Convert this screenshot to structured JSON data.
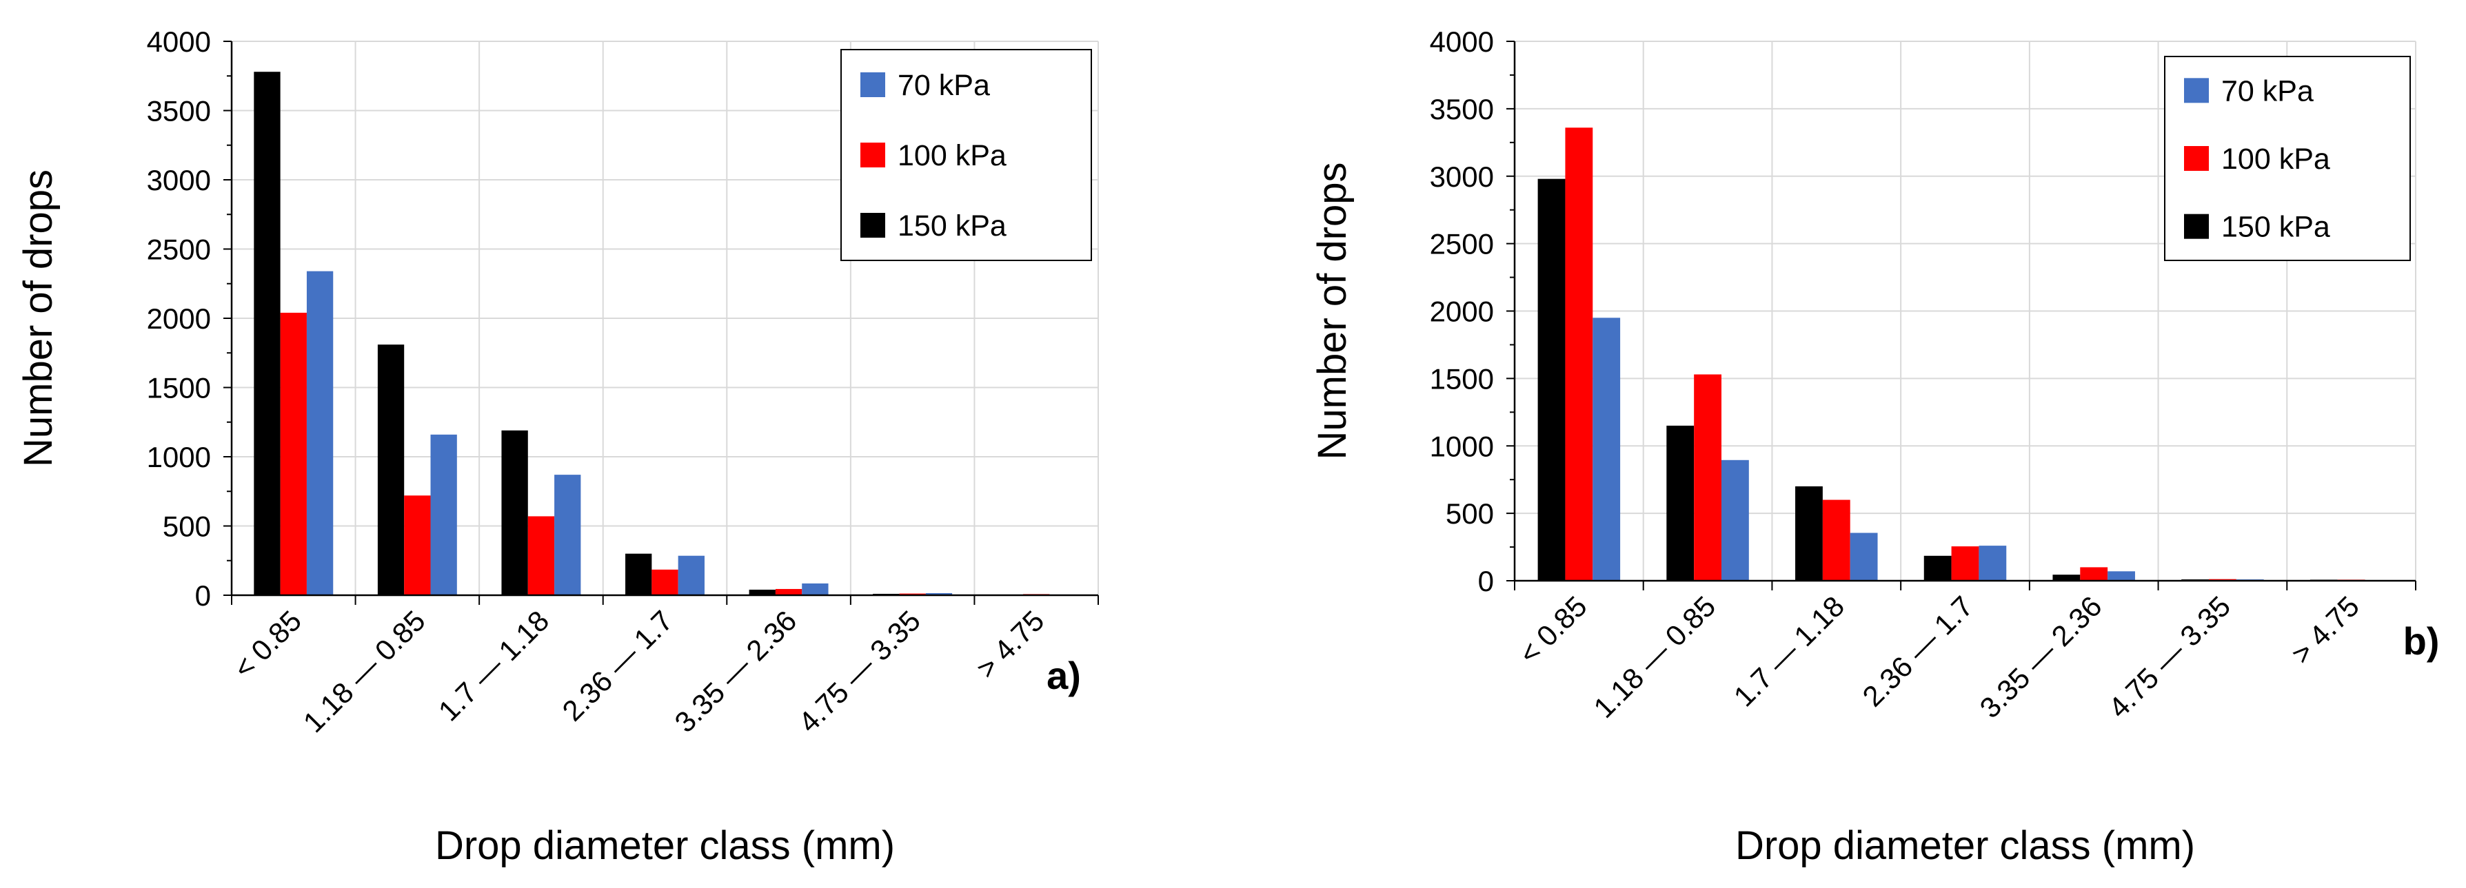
{
  "chart_data": [
    {
      "type": "bar",
      "panel_label": "a)",
      "categories": [
        "< 0.85",
        "1.18 — 0.85",
        "1.7 — 1.18",
        "2.36 — 1.7",
        "3.35 — 2.36",
        "4.75 — 3.35",
        "> 4.75"
      ],
      "series": [
        {
          "name": "150 kPa",
          "color": "#000000",
          "values": [
            3780,
            1810,
            1190,
            300,
            40,
            10,
            5
          ]
        },
        {
          "name": "100 kPa",
          "color": "#ff0000",
          "values": [
            2040,
            720,
            570,
            185,
            45,
            12,
            8
          ]
        },
        {
          "name": "70 kPa",
          "color": "#4472c4",
          "values": [
            2340,
            1160,
            870,
            285,
            85,
            15,
            5
          ]
        }
      ],
      "legend_order": [
        "70 kPa",
        "100 kPa",
        "150 kPa"
      ],
      "legend_position": "top-right",
      "yticks": [
        "0",
        "500",
        "1000",
        "1500",
        "2000",
        "2500",
        "3000",
        "3500",
        "4000"
      ],
      "ylim": [
        0,
        4000
      ],
      "xlabel": "Drop diameter class (mm)",
      "ylabel": "Number of drops",
      "grid": true
    },
    {
      "type": "bar",
      "panel_label": "b)",
      "categories": [
        "< 0.85",
        "1.18 — 0.85",
        "1.7 — 1.18",
        "2.36 — 1.7",
        "3.35 — 2.36",
        "4.75 — 3.35",
        "> 4.75"
      ],
      "series": [
        {
          "name": "150 kPa",
          "color": "#000000",
          "values": [
            2980,
            1150,
            700,
            185,
            45,
            10,
            8
          ]
        },
        {
          "name": "100 kPa",
          "color": "#ff0000",
          "values": [
            3360,
            1530,
            600,
            255,
            100,
            12,
            8
          ]
        },
        {
          "name": "70 kPa",
          "color": "#4472c4",
          "values": [
            1950,
            895,
            355,
            260,
            70,
            10,
            5
          ]
        }
      ],
      "legend_order": [
        "70 kPa",
        "100 kPa",
        "150 kPa"
      ],
      "legend_position": "top-right",
      "yticks": [
        "0",
        "500",
        "1000",
        "1500",
        "2000",
        "2500",
        "3000",
        "3500",
        "4000"
      ],
      "ylim": [
        0,
        4000
      ],
      "xlabel": "Drop diameter class (mm)",
      "ylabel": "Number of drops",
      "grid": true
    }
  ]
}
